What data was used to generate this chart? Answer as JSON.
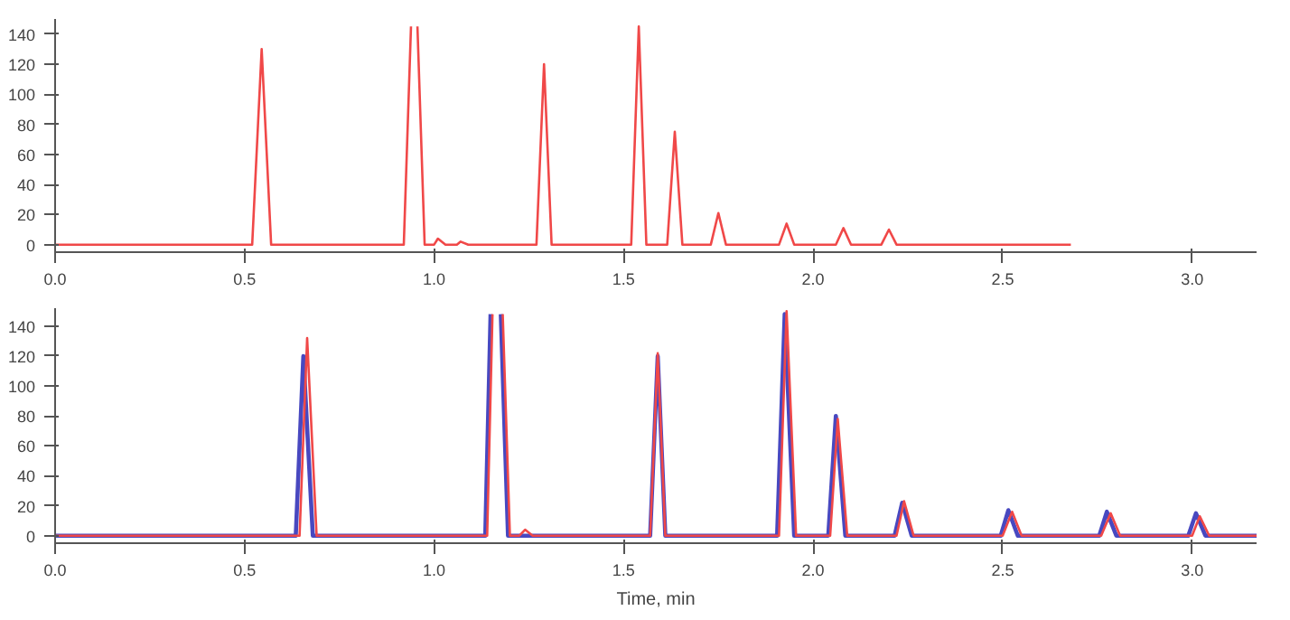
{
  "chart_data": [
    {
      "type": "line",
      "xlim": [
        0,
        3.17
      ],
      "ylim": [
        -5,
        150
      ],
      "xticks": [
        {
          "value": 0,
          "label": "0.0"
        },
        0.5,
        {
          "value": 1,
          "label": "1.0"
        },
        1.5,
        {
          "value": 2,
          "label": "2.0"
        },
        2.5,
        {
          "value": 3,
          "label": "3.0"
        }
      ],
      "yticks": [
        0,
        20,
        40,
        60,
        80,
        100,
        120,
        140
      ],
      "line_style": "solid",
      "series": [
        {
          "color": "#f04848",
          "x": [
            0,
            0.52,
            0.545,
            0.57,
            0.92,
            0.939,
            0.947,
            0.956,
            0.975,
            1.0,
            1.01,
            1.03,
            1.06,
            1.07,
            1.09,
            1.27,
            1.29,
            1.31,
            1.52,
            1.54,
            1.56,
            1.615,
            1.635,
            1.655,
            1.73,
            1.75,
            1.77,
            1.91,
            1.93,
            1.95,
            2.06,
            2.08,
            2.1,
            2.18,
            2.2,
            2.22,
            2.68
          ],
          "values": [
            0,
            0,
            130,
            0,
            0,
            145,
            null,
            145,
            0,
            0,
            4,
            0,
            0,
            2,
            0,
            0,
            120,
            0,
            0,
            145,
            0,
            0,
            75,
            0,
            0,
            21,
            0,
            0,
            14,
            0,
            0,
            11,
            0,
            0,
            10,
            0,
            0
          ]
        }
      ]
    },
    {
      "type": "line",
      "xlabel": "Time, min",
      "xlim": [
        0,
        3.17
      ],
      "ylim": [
        -5,
        152
      ],
      "xticks": [
        {
          "value": 0,
          "label": "0.0"
        },
        0.5,
        {
          "value": 1,
          "label": "1.0"
        },
        1.5,
        {
          "value": 2,
          "label": "2.0"
        },
        2.5,
        {
          "value": 3,
          "label": "3.0"
        }
      ],
      "yticks": [
        0,
        20,
        40,
        60,
        80,
        100,
        120,
        140
      ],
      "line_style": "solid",
      "series": [
        {
          "color": "#4848c0",
          "x": [
            0,
            0.635,
            0.655,
            0.68,
            1.135,
            1.149,
            1.162,
            1.176,
            1.195,
            1.57,
            1.59,
            1.61,
            1.905,
            1.925,
            1.95,
            2.04,
            2.06,
            2.085,
            2.215,
            2.235,
            2.26,
            2.495,
            2.515,
            2.54,
            2.755,
            2.775,
            2.8,
            2.99,
            3.01,
            3.035,
            3.17
          ],
          "values": [
            0,
            0,
            120,
            0,
            0,
            148,
            null,
            148,
            0,
            0,
            120,
            0,
            0,
            148,
            0,
            0,
            80,
            0,
            0,
            22,
            0,
            0,
            17,
            0,
            0,
            16,
            0,
            0,
            15,
            0,
            0
          ]
        },
        {
          "color": "#f04848",
          "x": [
            0,
            0.645,
            0.665,
            0.69,
            1.14,
            1.154,
            1.167,
            1.181,
            1.2,
            1.225,
            1.24,
            1.26,
            1.57,
            1.59,
            1.61,
            1.91,
            1.93,
            1.955,
            2.045,
            2.065,
            2.09,
            2.22,
            2.24,
            2.265,
            2.5,
            2.525,
            2.55,
            2.76,
            2.785,
            2.81,
            3.0,
            3.02,
            3.045,
            3.17
          ],
          "values": [
            0,
            0,
            132,
            0,
            0,
            148,
            null,
            148,
            0,
            0,
            4,
            0,
            0,
            122,
            0,
            0,
            150,
            0,
            0,
            78,
            0,
            0,
            23,
            0,
            0,
            16,
            0,
            0,
            15,
            0,
            0,
            13,
            0,
            0
          ]
        }
      ]
    }
  ]
}
